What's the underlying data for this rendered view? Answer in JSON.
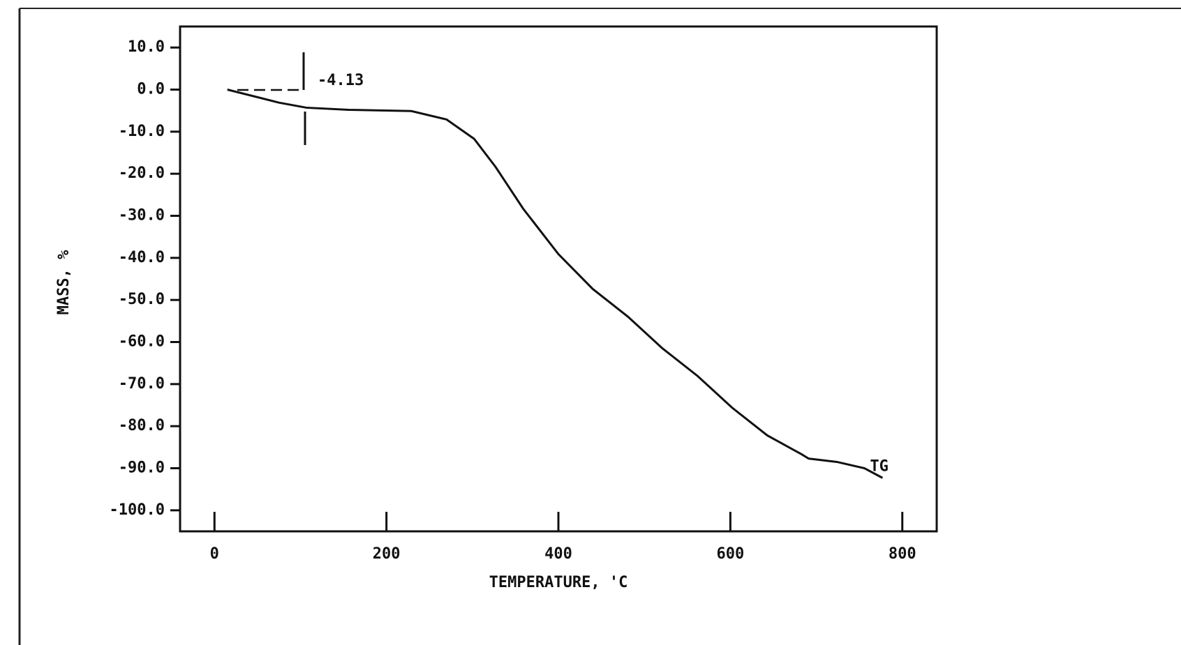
{
  "chart_data": {
    "type": "line",
    "x_label": "TEMPERATURE, 'C",
    "y_label": "MASS, %",
    "annotation": "-4.13",
    "x": [
      15,
      75,
      107,
      156,
      229,
      270,
      302,
      327,
      359,
      400,
      440,
      481,
      521,
      562,
      602,
      643,
      683,
      691,
      724,
      756,
      777
    ],
    "series": [
      {
        "name": "TG",
        "color": "#111111",
        "values": [
          0,
          -3.1,
          -4.3,
          -4.8,
          -5.1,
          -7.1,
          -11.7,
          -18.4,
          -28.3,
          -39.1,
          -47.4,
          -54,
          -61.5,
          -68.1,
          -75.6,
          -82.2,
          -86.7,
          -87.7,
          -88.5,
          -90,
          -92.3
        ]
      }
    ],
    "xlim": [
      -40,
      840
    ],
    "ylim": [
      -105,
      15
    ],
    "xticks": [
      0,
      200,
      400,
      600,
      800
    ],
    "yticks": [
      {
        "value": 10,
        "label": "10.0"
      },
      {
        "value": 0,
        "label": "0.0"
      },
      {
        "value": -10,
        "label": "-10.0"
      },
      {
        "value": -20,
        "label": "-20.0"
      },
      {
        "value": -30,
        "label": "-30.0"
      },
      {
        "value": -40,
        "label": "-40.0"
      },
      {
        "value": -50,
        "label": "-50.0"
      },
      {
        "value": -60,
        "label": "-60.0"
      },
      {
        "value": -70,
        "label": "-70.0"
      },
      {
        "value": -80,
        "label": "-80.0"
      },
      {
        "value": -90,
        "label": "-90.0"
      },
      {
        "value": -100,
        "label": "-100.0"
      }
    ],
    "grid": false
  }
}
